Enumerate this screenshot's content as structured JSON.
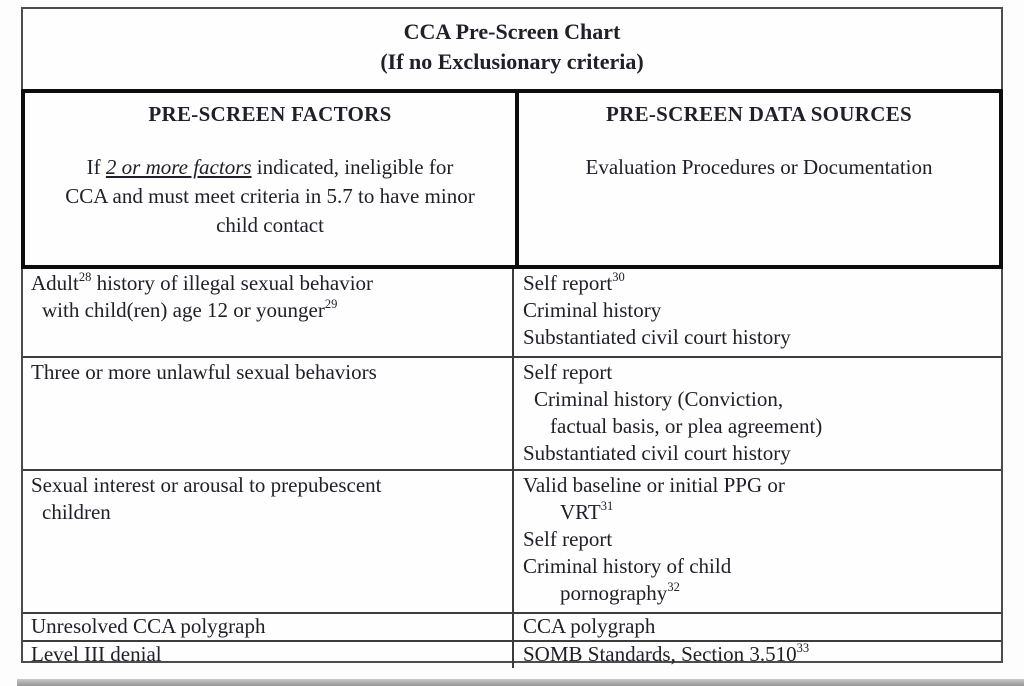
{
  "title": {
    "line1": "CCA Pre-Screen Chart",
    "line2": "(If no Exclusionary criteria)"
  },
  "header": {
    "factors": {
      "heading": "PRE-SCREEN FACTORS",
      "note_lines": [
        [
          {
            "text": "If "
          },
          {
            "em": "2 or more factors"
          },
          {
            "text": " indicated, ineligible for"
          }
        ],
        [
          {
            "text": "CCA and must meet criteria in 5.7 to have minor"
          }
        ],
        [
          {
            "text": "child contact"
          }
        ]
      ]
    },
    "sources": {
      "heading": "PRE-SCREEN DATA SOURCES",
      "note": "Evaluation Procedures or Documentation"
    }
  },
  "rows": [
    {
      "factor_lines": [
        {
          "indent": 0,
          "segments": [
            {
              "text": "Adult"
            },
            {
              "sup": "28"
            },
            {
              "text": " history of illegal sexual behavior"
            }
          ]
        },
        {
          "indent": 1,
          "segments": [
            {
              "text": "with child(ren) age 12 or younger"
            },
            {
              "sup": "29"
            }
          ]
        }
      ],
      "source_lines": [
        {
          "indent": 0,
          "segments": [
            {
              "text": "Self report"
            },
            {
              "sup": "30"
            }
          ]
        },
        {
          "indent": 0,
          "segments": [
            {
              "text": "Criminal history"
            }
          ]
        },
        {
          "indent": 0,
          "segments": [
            {
              "text": "Substantiated civil court history"
            }
          ]
        }
      ]
    },
    {
      "factor_lines": [
        {
          "indent": 0,
          "segments": [
            {
              "text": "Three or more unlawful sexual behaviors"
            }
          ]
        }
      ],
      "source_lines": [
        {
          "indent": 0,
          "segments": [
            {
              "text": "Self report"
            }
          ]
        },
        {
          "indent": 1,
          "segments": [
            {
              "text": "Criminal history (Conviction,"
            }
          ]
        },
        {
          "indent": 2,
          "segments": [
            {
              "text": "factual basis, or plea agreement)"
            }
          ]
        },
        {
          "indent": 0,
          "segments": [
            {
              "text": "Substantiated civil court history"
            }
          ]
        }
      ]
    },
    {
      "factor_lines": [
        {
          "indent": 0,
          "segments": [
            {
              "text": "Sexual interest or arousal to prepubescent"
            }
          ]
        },
        {
          "indent": 1,
          "segments": [
            {
              "text": "children"
            }
          ]
        }
      ],
      "source_lines": [
        {
          "indent": 0,
          "segments": [
            {
              "text": "Valid baseline or initial PPG or"
            }
          ]
        },
        {
          "indent": 3,
          "segments": [
            {
              "text": "VRT"
            },
            {
              "sup": "31"
            }
          ]
        },
        {
          "indent": 0,
          "segments": [
            {
              "text": "Self report"
            }
          ]
        },
        {
          "indent": 0,
          "segments": [
            {
              "text": "Criminal history of child"
            }
          ]
        },
        {
          "indent": 3,
          "segments": [
            {
              "text": "pornography"
            },
            {
              "sup": "32"
            }
          ]
        }
      ]
    },
    {
      "factor_lines": [
        {
          "indent": 0,
          "segments": [
            {
              "text": "Unresolved CCA polygraph"
            }
          ]
        }
      ],
      "source_lines": [
        {
          "indent": 0,
          "segments": [
            {
              "text": "CCA polygraph"
            }
          ]
        }
      ]
    },
    {
      "factor_lines": [
        {
          "indent": 0,
          "segments": [
            {
              "text": "Level III denial"
            }
          ]
        }
      ],
      "source_lines": [
        {
          "indent": 0,
          "segments": [
            {
              "text": "SOMB Standards, Section 3.510"
            },
            {
              "sup": "33"
            }
          ]
        }
      ]
    }
  ],
  "colors": {
    "text": "#20202a",
    "thick_border": "#0d0d0d",
    "thin_border": "#3c3c3c"
  }
}
